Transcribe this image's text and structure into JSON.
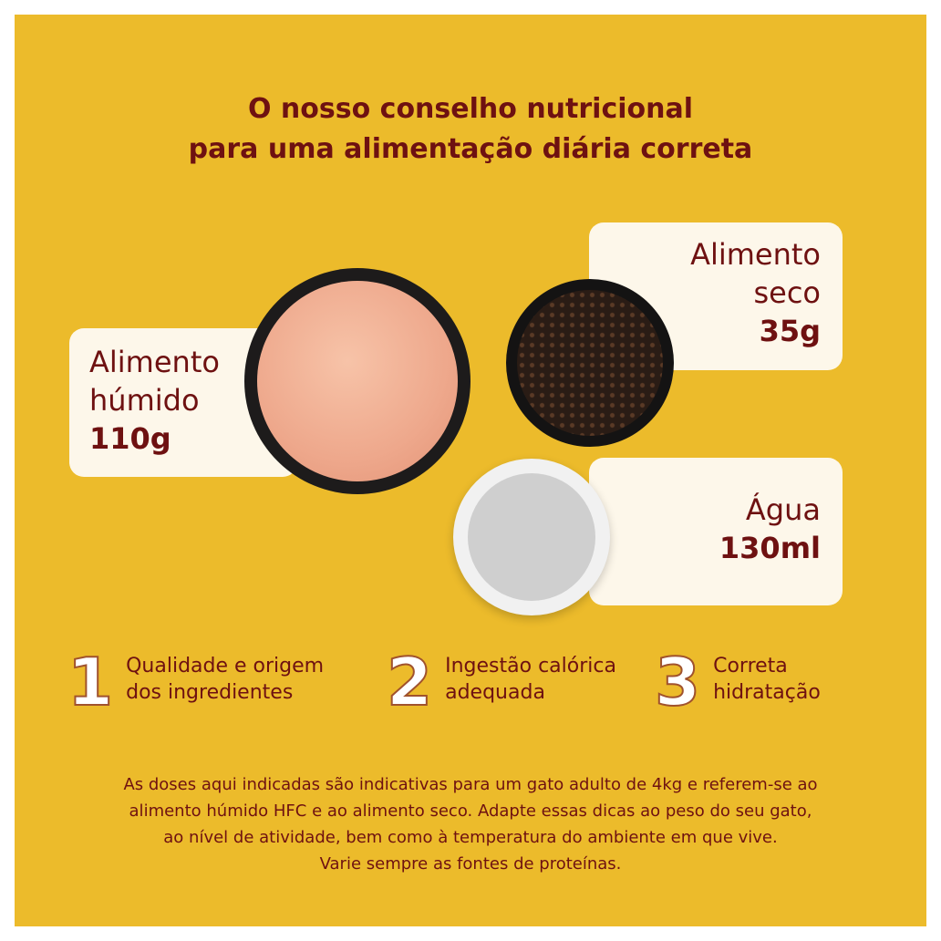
{
  "title": {
    "line1": "O  nosso conselho nutricional",
    "line2": "para uma alimentação diária correta"
  },
  "cards": {
    "wet": {
      "line1": "Alimento",
      "line2": "húmido",
      "amount": "110g"
    },
    "dry": {
      "line1": "Alimento",
      "line2": "seco",
      "amount": "35g"
    },
    "water": {
      "line1": "Água",
      "amount": "130ml"
    }
  },
  "steps": [
    {
      "num": "1",
      "line1": "Qualidade e origem",
      "line2": "dos ingredientes"
    },
    {
      "num": "2",
      "line1": "Ingestão calórica",
      "line2": "adequada"
    },
    {
      "num": "3",
      "line1": "Correta",
      "line2": "hidratação"
    }
  ],
  "note": [
    "As doses aqui indicadas são indicativas para um gato adulto de 4kg e referem-se ao",
    "alimento húmido HFC e ao alimento seco. Adapte essas dicas ao peso do seu gato,",
    "ao nível de atividade, bem como à temperatura do ambiente em que vive.",
    "Varie sempre as fontes de proteínas."
  ],
  "colors": {
    "background": "#ecbb2b",
    "text": "#6e1111",
    "card": "#fdf7ea"
  }
}
